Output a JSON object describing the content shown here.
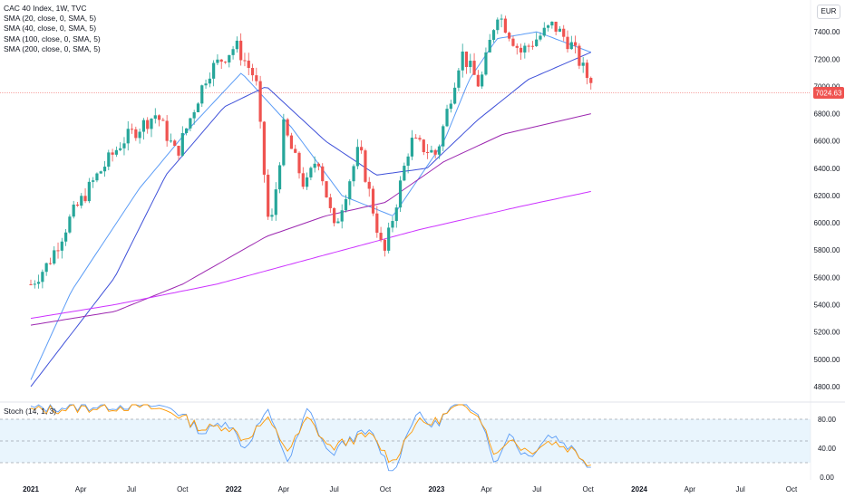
{
  "legend": {
    "title": "CAC 40 Index, 1W, TVC",
    "sma": [
      "SMA (20, close, 0, SMA, 5)",
      "SMA (40, close, 0, SMA, 5)",
      "SMA (100, close, 0, SMA, 5)",
      "SMA (200, close, 0, SMA, 5)"
    ],
    "stoch": "Stoch (14, 1, 3)"
  },
  "currency": "EUR",
  "last_price": "7024.63",
  "colors": {
    "up": "#26a69a",
    "down": "#ef5350",
    "sma20": "#5b9cf6",
    "sma40": "#3f51d9",
    "sma100": "#9c27b0",
    "sma200": "#cc33ff",
    "k": "#5b9cf6",
    "d": "#ff9800",
    "band": "#e3f2fd"
  },
  "chart_data": [
    {
      "type": "candlestick",
      "title": "CAC 40 Index, 1W, TVC",
      "currency": "EUR",
      "y_ticks": [
        "7400.00",
        "7200.00",
        "7000.00",
        "6800.00",
        "6600.00",
        "6400.00",
        "6200.00",
        "6000.00",
        "5800.00",
        "5600.00",
        "5400.00",
        "5200.00",
        "5000.00",
        "4800.00"
      ],
      "x_ticks": [
        "2021",
        "Apr",
        "Jul",
        "Oct",
        "2022",
        "Apr",
        "Jul",
        "Oct",
        "2023",
        "Apr",
        "Jul",
        "Oct",
        "2024",
        "Apr",
        "Jul",
        "Oct"
      ],
      "ylim": [
        4700,
        7600
      ],
      "last_price": 7024.63,
      "price_anchors": [
        [
          "2021-01-01",
          5550
        ],
        [
          "2021-02-01",
          5700
        ],
        [
          "2021-03-15",
          6050
        ],
        [
          "2021-05-01",
          6350
        ],
        [
          "2021-06-15",
          6600
        ],
        [
          "2021-08-15",
          6800
        ],
        [
          "2021-09-20",
          6500
        ],
        [
          "2021-11-15",
          7100
        ],
        [
          "2022-01-05",
          7300
        ],
        [
          "2022-02-10",
          7050
        ],
        [
          "2022-03-07",
          5900
        ],
        [
          "2022-04-01",
          6700
        ],
        [
          "2022-05-10",
          6250
        ],
        [
          "2022-06-01",
          6500
        ],
        [
          "2022-07-01",
          5950
        ],
        [
          "2022-08-15",
          6550
        ],
        [
          "2022-09-28",
          5750
        ],
        [
          "2022-11-15",
          6600
        ],
        [
          "2023-01-01",
          6500
        ],
        [
          "2023-02-15",
          7250
        ],
        [
          "2023-03-20",
          7000
        ],
        [
          "2023-04-20",
          7550
        ],
        [
          "2023-06-01",
          7250
        ],
        [
          "2023-07-30",
          7450
        ],
        [
          "2023-09-01",
          7300
        ],
        [
          "2023-09-25",
          7100
        ],
        [
          "2023-10-06",
          7024.63
        ]
      ],
      "sma_anchors": {
        "SMA 20": [
          [
            "2021-01-01",
            4850
          ],
          [
            "2021-03-15",
            5500
          ],
          [
            "2021-07-15",
            6250
          ],
          [
            "2021-10-15",
            6700
          ],
          [
            "2022-01-15",
            7100
          ],
          [
            "2022-04-15",
            6700
          ],
          [
            "2022-07-15",
            6200
          ],
          [
            "2022-10-15",
            6050
          ],
          [
            "2023-01-15",
            6600
          ],
          [
            "2023-03-01",
            7050
          ],
          [
            "2023-04-20",
            7350
          ],
          [
            "2023-07-01",
            7400
          ],
          [
            "2023-10-06",
            7250
          ]
        ],
        "SMA 40": [
          [
            "2021-01-01",
            4800
          ],
          [
            "2021-06-01",
            5600
          ],
          [
            "2021-09-01",
            6350
          ],
          [
            "2021-12-15",
            6850
          ],
          [
            "2022-03-01",
            7000
          ],
          [
            "2022-06-15",
            6600
          ],
          [
            "2022-09-15",
            6350
          ],
          [
            "2022-12-15",
            6400
          ],
          [
            "2023-03-15",
            6750
          ],
          [
            "2023-06-15",
            7050
          ],
          [
            "2023-10-06",
            7250
          ]
        ],
        "SMA 100": [
          [
            "2021-01-01",
            5250
          ],
          [
            "2021-06-01",
            5350
          ],
          [
            "2021-10-01",
            5550
          ],
          [
            "2022-03-01",
            5900
          ],
          [
            "2022-06-15",
            6050
          ],
          [
            "2022-10-01",
            6150
          ],
          [
            "2023-01-15",
            6450
          ],
          [
            "2023-05-01",
            6650
          ],
          [
            "2023-10-06",
            6800
          ]
        ],
        "SMA 200": [
          [
            "2021-01-01",
            5300
          ],
          [
            "2021-06-01",
            5400
          ],
          [
            "2021-12-01",
            5550
          ],
          [
            "2022-06-01",
            5750
          ],
          [
            "2022-12-01",
            5950
          ],
          [
            "2023-06-01",
            6120
          ],
          [
            "2023-10-06",
            6230
          ]
        ]
      }
    },
    {
      "type": "line",
      "title": "Stoch (14, 1, 3)",
      "y_ticks": [
        "80.00",
        "40.00",
        "0.00"
      ],
      "ylim": [
        -8,
        104
      ],
      "band": [
        20,
        80
      ],
      "midline": 50,
      "k_anchors": [
        [
          0,
          95
        ],
        [
          20,
          98
        ],
        [
          35,
          100
        ],
        [
          45,
          96
        ],
        [
          55,
          60
        ],
        [
          62,
          80
        ],
        [
          68,
          40
        ],
        [
          75,
          92
        ],
        [
          82,
          20
        ],
        [
          88,
          95
        ],
        [
          95,
          30
        ],
        [
          102,
          55
        ],
        [
          108,
          62
        ],
        [
          115,
          5
        ],
        [
          122,
          88
        ],
        [
          128,
          70
        ],
        [
          135,
          100
        ],
        [
          142,
          95
        ],
        [
          148,
          15
        ],
        [
          152,
          65
        ],
        [
          155,
          40
        ],
        [
          158,
          28
        ],
        [
          165,
          60
        ],
        [
          172,
          40
        ],
        [
          178,
          15
        ]
      ],
      "d_anchors": [
        [
          0,
          92
        ],
        [
          20,
          96
        ],
        [
          35,
          98
        ],
        [
          45,
          90
        ],
        [
          55,
          66
        ],
        [
          62,
          72
        ],
        [
          68,
          52
        ],
        [
          75,
          80
        ],
        [
          82,
          36
        ],
        [
          88,
          82
        ],
        [
          95,
          40
        ],
        [
          102,
          52
        ],
        [
          108,
          58
        ],
        [
          115,
          20
        ],
        [
          122,
          75
        ],
        [
          128,
          75
        ],
        [
          135,
          96
        ],
        [
          142,
          92
        ],
        [
          148,
          28
        ],
        [
          152,
          55
        ],
        [
          155,
          45
        ],
        [
          158,
          35
        ],
        [
          165,
          50
        ],
        [
          172,
          38
        ],
        [
          178,
          18
        ]
      ]
    }
  ]
}
